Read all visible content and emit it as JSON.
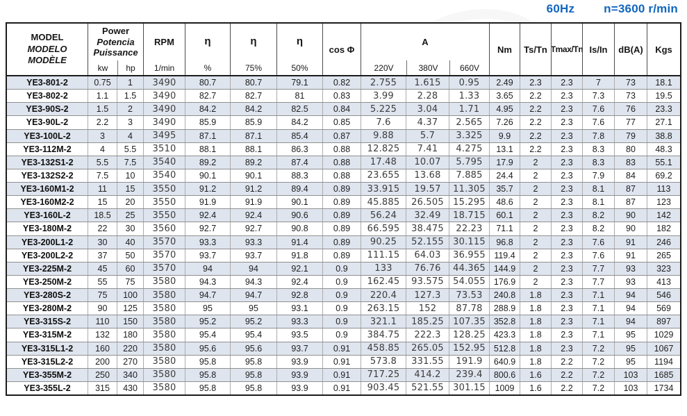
{
  "title": {
    "frequency": "60Hz",
    "speed": "n=3600 r/min"
  },
  "table": {
    "header": {
      "model_lines": [
        "MODEL",
        "MODELO",
        "MODÈLE"
      ],
      "power_lines": [
        "Power",
        "Potencia",
        "Puissance"
      ],
      "power_sub": [
        "kw",
        "hp"
      ],
      "rpm_label": "RPM",
      "rpm_sub": "1/min",
      "eta_label": "η",
      "eta_subs": [
        "%",
        "75%",
        "50%"
      ],
      "cos_phi": "cos Φ",
      "current_label": "A",
      "current_sub": [
        "220V",
        "380V",
        "660V"
      ],
      "nm": "Nm",
      "ts_tn": "Ts/Tn",
      "tmax_tn": "Tmax/Tn",
      "is_in": "Is/In",
      "db": "dB(A)",
      "kgs": "Kgs"
    },
    "column_keys": [
      "model",
      "kw",
      "hp",
      "rpm",
      "eta-100",
      "eta-75",
      "eta-50",
      "cos-phi",
      "a-220v",
      "a-380v",
      "a-660v",
      "nm",
      "ts-tn",
      "tmax-tn",
      "is-in",
      "db",
      "kgs"
    ],
    "rows": [
      [
        "YE3-801-2",
        "0.75",
        "1",
        "3490",
        "80.7",
        "80.7",
        "79.1",
        "0.82",
        "2.755",
        "1.615",
        "0.95",
        "2.49",
        "2.3",
        "2.3",
        "7",
        "73",
        "18.1"
      ],
      [
        "YE3-802-2",
        "1.1",
        "1.5",
        "3490",
        "82.7",
        "82.7",
        "81",
        "0.83",
        "3.99",
        "2.28",
        "1.33",
        "3.65",
        "2.2",
        "2.3",
        "7.3",
        "73",
        "19.5"
      ],
      [
        "YE3-90S-2",
        "1.5",
        "2",
        "3490",
        "84.2",
        "84.2",
        "82.5",
        "0.84",
        "5.225",
        "3.04",
        "1.71",
        "4.95",
        "2.2",
        "2.3",
        "7.6",
        "76",
        "23.3"
      ],
      [
        "YE3-90L-2",
        "2.2",
        "3",
        "3490",
        "85.9",
        "85.9",
        "84.2",
        "0.85",
        "7.6",
        "4.37",
        "2.565",
        "7.26",
        "2.2",
        "2.3",
        "7.6",
        "77",
        "27.1"
      ],
      [
        "YE3-100L-2",
        "3",
        "4",
        "3495",
        "87.1",
        "87.1",
        "85.4",
        "0.87",
        "9.88",
        "5.7",
        "3.325",
        "9.9",
        "2.2",
        "2.3",
        "7.8",
        "79",
        "38.8"
      ],
      [
        "YE3-112M-2",
        "4",
        "5.5",
        "3510",
        "88.1",
        "88.1",
        "86.3",
        "0.88",
        "12.825",
        "7.41",
        "4.275",
        "13.1",
        "2.2",
        "2.3",
        "8.3",
        "80",
        "48.3"
      ],
      [
        "YE3-132S1-2",
        "5.5",
        "7.5",
        "3540",
        "89.2",
        "89.2",
        "87.4",
        "0.88",
        "17.48",
        "10.07",
        "5.795",
        "17.9",
        "2",
        "2.3",
        "8.3",
        "83",
        "55.1"
      ],
      [
        "YE3-132S2-2",
        "7.5",
        "10",
        "3540",
        "90.1",
        "90.1",
        "88.3",
        "0.88",
        "23.655",
        "13.68",
        "7.885",
        "24.4",
        "2",
        "2.3",
        "7.9",
        "84",
        "69.2"
      ],
      [
        "YE3-160M1-2",
        "11",
        "15",
        "3550",
        "91.2",
        "91.2",
        "89.4",
        "0.89",
        "33.915",
        "19.57",
        "11.305",
        "35.7",
        "2",
        "2.3",
        "8.1",
        "87",
        "113"
      ],
      [
        "YE3-160M2-2",
        "15",
        "20",
        "3550",
        "91.9",
        "91.9",
        "90.1",
        "0.89",
        "45.885",
        "26.505",
        "15.295",
        "48.6",
        "2",
        "2.3",
        "8.1",
        "87",
        "123"
      ],
      [
        "YE3-160L-2",
        "18.5",
        "25",
        "3550",
        "92.4",
        "92.4",
        "90.6",
        "0.89",
        "56.24",
        "32.49",
        "18.715",
        "60.1",
        "2",
        "2.3",
        "8.2",
        "90",
        "142"
      ],
      [
        "YE3-180M-2",
        "22",
        "30",
        "3560",
        "92.7",
        "92.7",
        "90.8",
        "0.89",
        "66.595",
        "38.475",
        "22.23",
        "71.1",
        "2",
        "2.3",
        "8.2",
        "90",
        "182"
      ],
      [
        "YE3-200L1-2",
        "30",
        "40",
        "3570",
        "93.3",
        "93.3",
        "91.4",
        "0.89",
        "90.25",
        "52.155",
        "30.115",
        "96.8",
        "2",
        "2.3",
        "7.6",
        "91",
        "246"
      ],
      [
        "YE3-200L2-2",
        "37",
        "50",
        "3570",
        "93.7",
        "93.7",
        "91.8",
        "0.89",
        "111.15",
        "64.03",
        "36.955",
        "119.4",
        "2",
        "2.3",
        "7.6",
        "91",
        "265"
      ],
      [
        "YE3-225M-2",
        "45",
        "60",
        "3570",
        "94",
        "94",
        "92.1",
        "0.9",
        "133",
        "76.76",
        "44.365",
        "144.9",
        "2",
        "2.3",
        "7.7",
        "93",
        "323"
      ],
      [
        "YE3-250M-2",
        "55",
        "75",
        "3580",
        "94.3",
        "94.3",
        "92.4",
        "0.9",
        "162.45",
        "93.575",
        "54.055",
        "176.9",
        "2",
        "2.3",
        "7.7",
        "93",
        "413"
      ],
      [
        "YE3-280S-2",
        "75",
        "100",
        "3580",
        "94.7",
        "94.7",
        "92.8",
        "0.9",
        "220.4",
        "127.3",
        "73.53",
        "240.8",
        "1.8",
        "2.3",
        "7.1",
        "94",
        "546"
      ],
      [
        "YE3-280M-2",
        "90",
        "125",
        "3580",
        "95",
        "95",
        "93.1",
        "0.9",
        "263.15",
        "152",
        "87.78",
        "288.9",
        "1.8",
        "2.3",
        "7.1",
        "94",
        "569"
      ],
      [
        "YE3-315S-2",
        "110",
        "150",
        "3580",
        "95.2",
        "95.2",
        "93.3",
        "0.9",
        "321.1",
        "185.25",
        "107.35",
        "352.8",
        "1.8",
        "2.3",
        "7.1",
        "94",
        "897"
      ],
      [
        "YE3-315M-2",
        "132",
        "180",
        "3580",
        "95.4",
        "95.4",
        "93.5",
        "0.9",
        "384.75",
        "222.3",
        "128.25",
        "423.3",
        "1.8",
        "2.3",
        "7.1",
        "95",
        "1029"
      ],
      [
        "YE3-315L1-2",
        "160",
        "220",
        "3580",
        "95.6",
        "95.6",
        "93.7",
        "0.91",
        "458.85",
        "265.05",
        "152.95",
        "512.8",
        "1.8",
        "2.3",
        "7.2",
        "95",
        "1067"
      ],
      [
        "YE3-315L2-2",
        "200",
        "270",
        "3580",
        "95.8",
        "95.8",
        "93.9",
        "0.91",
        "573.8",
        "331.55",
        "191.9",
        "640.9",
        "1.8",
        "2.2",
        "7.2",
        "95",
        "1194"
      ],
      [
        "YE3-355M-2",
        "250",
        "340",
        "3580",
        "95.8",
        "95.8",
        "93.9",
        "0.91",
        "717.25",
        "414.2",
        "239.4",
        "800.6",
        "1.6",
        "2.2",
        "7.2",
        "103",
        "1685"
      ],
      [
        "YE3-355L-2",
        "315",
        "430",
        "3580",
        "95.8",
        "95.8",
        "93.9",
        "0.91",
        "903.45",
        "521.55",
        "301.15",
        "1009",
        "1.6",
        "2.2",
        "7.2",
        "103",
        "1734"
      ]
    ]
  },
  "colors": {
    "accent_blue": "#1166bf",
    "row_band": "#dfe5ef",
    "border_dark": "#1b1b1b",
    "grid_horizontal": "#8f8f8f",
    "grid_vertical": "#ababab",
    "header_grid": "#4a4a4a"
  }
}
